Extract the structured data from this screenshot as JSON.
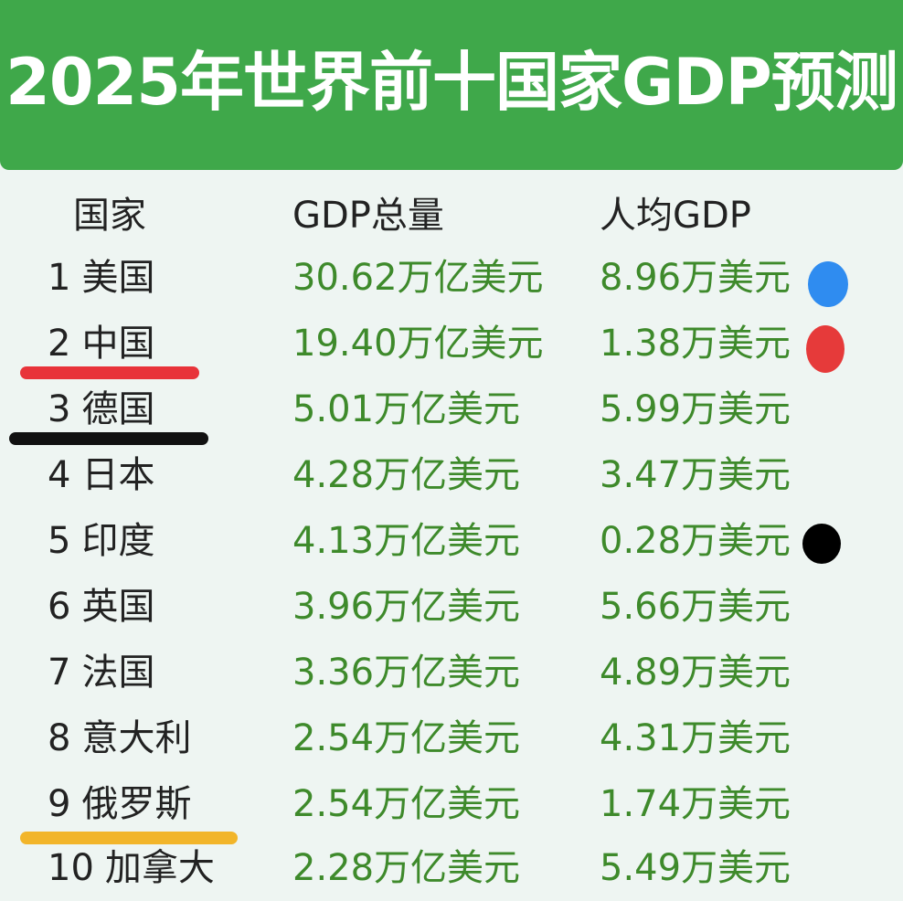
{
  "title": "2025年世界前十国家GDP预测",
  "headers": {
    "country": "国家",
    "gdp": "GDP总量",
    "per_capita": "人均GDP"
  },
  "rows": [
    {
      "rank": "1",
      "country": "美国",
      "gdp": "30.62万亿美元",
      "per_capita": "8.96万美元"
    },
    {
      "rank": "2",
      "country": "中国",
      "gdp": "19.40万亿美元",
      "per_capita": "1.38万美元"
    },
    {
      "rank": "3",
      "country": "德国",
      "gdp": "5.01万亿美元",
      "per_capita": "5.99万美元"
    },
    {
      "rank": "4",
      "country": "日本",
      "gdp": "4.28万亿美元",
      "per_capita": "3.47万美元"
    },
    {
      "rank": "5",
      "country": "印度",
      "gdp": "4.13万亿美元",
      "per_capita": "0.28万美元"
    },
    {
      "rank": "6",
      "country": "英国",
      "gdp": "3.96万亿美元",
      "per_capita": "5.66万美元"
    },
    {
      "rank": "7",
      "country": "法国",
      "gdp": "3.36万亿美元",
      "per_capita": "4.89万美元"
    },
    {
      "rank": "8",
      "country": "意大利",
      "gdp": "2.54万亿美元",
      "per_capita": "4.31万美元"
    },
    {
      "rank": "9",
      "country": "俄罗斯",
      "gdp": "2.54万亿美元",
      "per_capita": "1.74万美元"
    },
    {
      "rank": "10",
      "country": "加拿大",
      "gdp": "2.28万亿美元",
      "per_capita": "5.49万美元"
    }
  ],
  "markers": {
    "dots": [
      {
        "row": 1,
        "color": "#2f8cf0"
      },
      {
        "row": 2,
        "color": "#e63a3a"
      },
      {
        "row": 5,
        "color": "#000000"
      }
    ],
    "underlines": [
      {
        "row": 2,
        "color": "#e8333a"
      },
      {
        "row": 3,
        "color": "#111111"
      },
      {
        "row": 9,
        "color": "#f2b52a"
      }
    ]
  },
  "colors": {
    "banner": "#3fa84a",
    "value_text": "#3e8a2b",
    "background": "#eef5f2"
  }
}
